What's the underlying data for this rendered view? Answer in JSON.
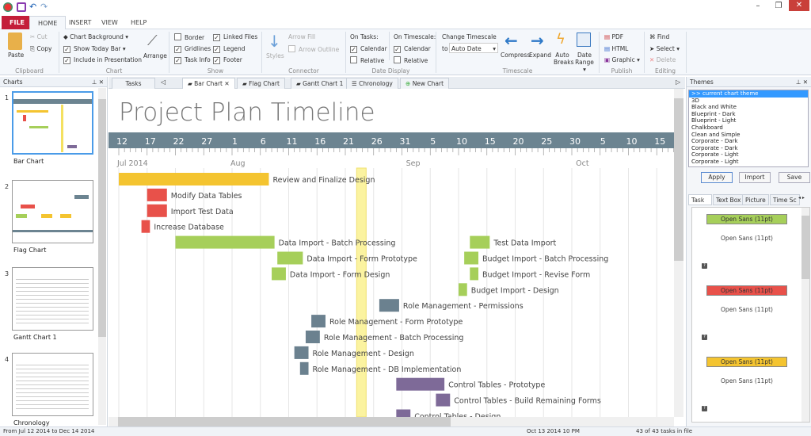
{
  "window": {
    "minimize": "–",
    "maximize": "❐",
    "close": "✕"
  },
  "menu": {
    "file": "FILE",
    "tabs": [
      "HOME",
      "INSERT",
      "VIEW",
      "HELP"
    ]
  },
  "ribbon": {
    "clipboard": {
      "paste": "Paste",
      "cut": "Cut",
      "copy": "Copy",
      "label": "Clipboard"
    },
    "chart": {
      "background": "Chart Background ▾",
      "today_bar": "Show Today Bar ▾",
      "include": "Include in Presentation",
      "arrange": "Arrange",
      "label": "Chart"
    },
    "show": {
      "border": "Border",
      "gridlines": "Gridlines",
      "task_info": "Task Info",
      "linked_files": "Linked Files",
      "legend": "Legend",
      "footer": "Footer",
      "label": "Show",
      "checked": {
        "border": false,
        "gridlines": true,
        "task_info": true,
        "linked_files": true,
        "legend": true,
        "footer": true
      }
    },
    "connector": {
      "styles": "Styles",
      "arrow_fill": "Arrow Fill",
      "arrow_outline": "Arrow Outline",
      "label": "Connector"
    },
    "date_display": {
      "on_tasks": "On Tasks:",
      "on_timescale": "On Timescale:",
      "calendar": "Calendar",
      "relative": "Relative",
      "label": "Date Display"
    },
    "timescale": {
      "change": "Change Timescale",
      "to": "to",
      "value": "Auto Date",
      "compress": "Compress",
      "expand": "Expand",
      "auto_breaks": "Auto Breaks",
      "date_range": "Date Range ▾",
      "label": "Timescale"
    },
    "publish": {
      "pdf": "PDF",
      "html": "HTML",
      "graphic": "Graphic ▾",
      "label": "Publish"
    },
    "editing": {
      "find": "Find",
      "select": "Select ▾",
      "delete": "Delete",
      "label": "Editing"
    }
  },
  "charts_panel": {
    "title": "Charts",
    "items": [
      {
        "num": "1",
        "label": "Bar Chart"
      },
      {
        "num": "2",
        "label": "Flag Chart"
      },
      {
        "num": "3",
        "label": "Gantt Chart 1"
      },
      {
        "num": "4",
        "label": "Chronology"
      }
    ]
  },
  "doc_tabs": [
    "Tasks",
    "Bar Chart",
    "Flag Chart",
    "Gantt Chart 1",
    "Chronology",
    "New Chart"
  ],
  "chart": {
    "title": "Project Plan Timeline",
    "timescale_days": [
      "12",
      "17",
      "22",
      "27",
      "1",
      "6",
      "11",
      "16",
      "21",
      "26",
      "31",
      "5",
      "10",
      "15",
      "20",
      "25",
      "30",
      "5",
      "10",
      "15"
    ],
    "months": [
      "Jul 2014",
      "Aug",
      "Sep",
      "Oct"
    ],
    "today_marker": "2014-08-23",
    "colors": {
      "yellow": "#f4c430",
      "red": "#e8514a",
      "green": "#a6cf5a",
      "slate": "#6b818f",
      "purple": "#7e6a98",
      "timescale": "#6c8491",
      "today": "#fbf3a0"
    },
    "tasks": [
      {
        "name": "Review and Finalize Design",
        "start": "2014-07-12",
        "end": "2014-08-07",
        "color": "yellow",
        "row": 0
      },
      {
        "name": "Modify Data Tables",
        "start": "2014-07-17",
        "end": "2014-07-20",
        "color": "red",
        "row": 1
      },
      {
        "name": "Import Test Data",
        "start": "2014-07-17",
        "end": "2014-07-20",
        "color": "red",
        "row": 2
      },
      {
        "name": "Increase Database",
        "start": "2014-07-16",
        "end": "2014-07-17",
        "color": "red",
        "row": 3
      },
      {
        "name": "Data Import - Batch Processing",
        "start": "2014-07-22",
        "end": "2014-08-08",
        "color": "green",
        "row": 4
      },
      {
        "name": "Data Import - Form Prototype",
        "start": "2014-08-09",
        "end": "2014-08-13",
        "color": "green",
        "row": 5
      },
      {
        "name": "Data Import - Form Design",
        "start": "2014-08-08",
        "end": "2014-08-10",
        "color": "green",
        "row": 6
      },
      {
        "name": "Test Data Import",
        "start": "2014-09-12",
        "end": "2014-09-15",
        "color": "green",
        "row": 4
      },
      {
        "name": "Budget Import - Batch Processing",
        "start": "2014-09-11",
        "end": "2014-09-13",
        "color": "green",
        "row": 5
      },
      {
        "name": "Budget Import - Revise Form",
        "start": "2014-09-12",
        "end": "2014-09-13",
        "color": "green",
        "row": 6
      },
      {
        "name": "Budget Import - Design",
        "start": "2014-09-10",
        "end": "2014-09-11",
        "color": "green",
        "row": 7
      },
      {
        "name": "Role Management - Permissions",
        "start": "2014-08-27",
        "end": "2014-08-30",
        "color": "slate",
        "row": 8
      },
      {
        "name": "Role Management - Form Prototype",
        "start": "2014-08-15",
        "end": "2014-08-17",
        "color": "slate",
        "row": 9
      },
      {
        "name": "Role Management - Batch Processing",
        "start": "2014-08-14",
        "end": "2014-08-16",
        "color": "slate",
        "row": 10
      },
      {
        "name": "Role Management - Design",
        "start": "2014-08-12",
        "end": "2014-08-14",
        "color": "slate",
        "row": 11
      },
      {
        "name": "Role Management - DB Implementation",
        "start": "2014-08-13",
        "end": "2014-08-14",
        "color": "slate",
        "row": 12
      },
      {
        "name": "Control Tables - Prototype",
        "start": "2014-08-30",
        "end": "2014-09-07",
        "color": "purple",
        "row": 13
      },
      {
        "name": "Control Tables - Build Remaining Forms",
        "start": "2014-09-06",
        "end": "2014-09-08",
        "color": "purple",
        "row": 14
      },
      {
        "name": "Control Tables - Design",
        "start": "2014-08-30",
        "end": "2014-09-01",
        "color": "purple",
        "row": 15
      }
    ]
  },
  "themes": {
    "title": "Themes",
    "items": [
      ">> current chart theme",
      "3D",
      "Black and White",
      "Blueprint - Dark",
      "Blueprint - Light",
      "Chalkboard",
      "Clean and Simple",
      "Corporate - Dark",
      "Corporate - Dark",
      "Corporate - Light",
      "Corporate - Light"
    ],
    "apply": "Apply",
    "import": "Import",
    "save": "Save"
  },
  "style_tabs": [
    "Task",
    "Text Box",
    "Picture",
    "Time Sc"
  ],
  "styles": [
    {
      "label": "Open Sans (11pt)",
      "sample": "Open Sans (11pt)",
      "color": "#a6cf5a"
    },
    {
      "label": "Open Sans (11pt)",
      "sample": "Open Sans (11pt)",
      "color": "#e8514a"
    },
    {
      "label": "Open Sans (11pt)",
      "sample": "Open Sans (11pt)",
      "color": "#f4c430"
    }
  ],
  "status": {
    "range": "From Jul 12 2014  to Dec 14 2014",
    "now": "Oct 13 2014 10 PM",
    "count": "43 of 43 tasks in file"
  }
}
